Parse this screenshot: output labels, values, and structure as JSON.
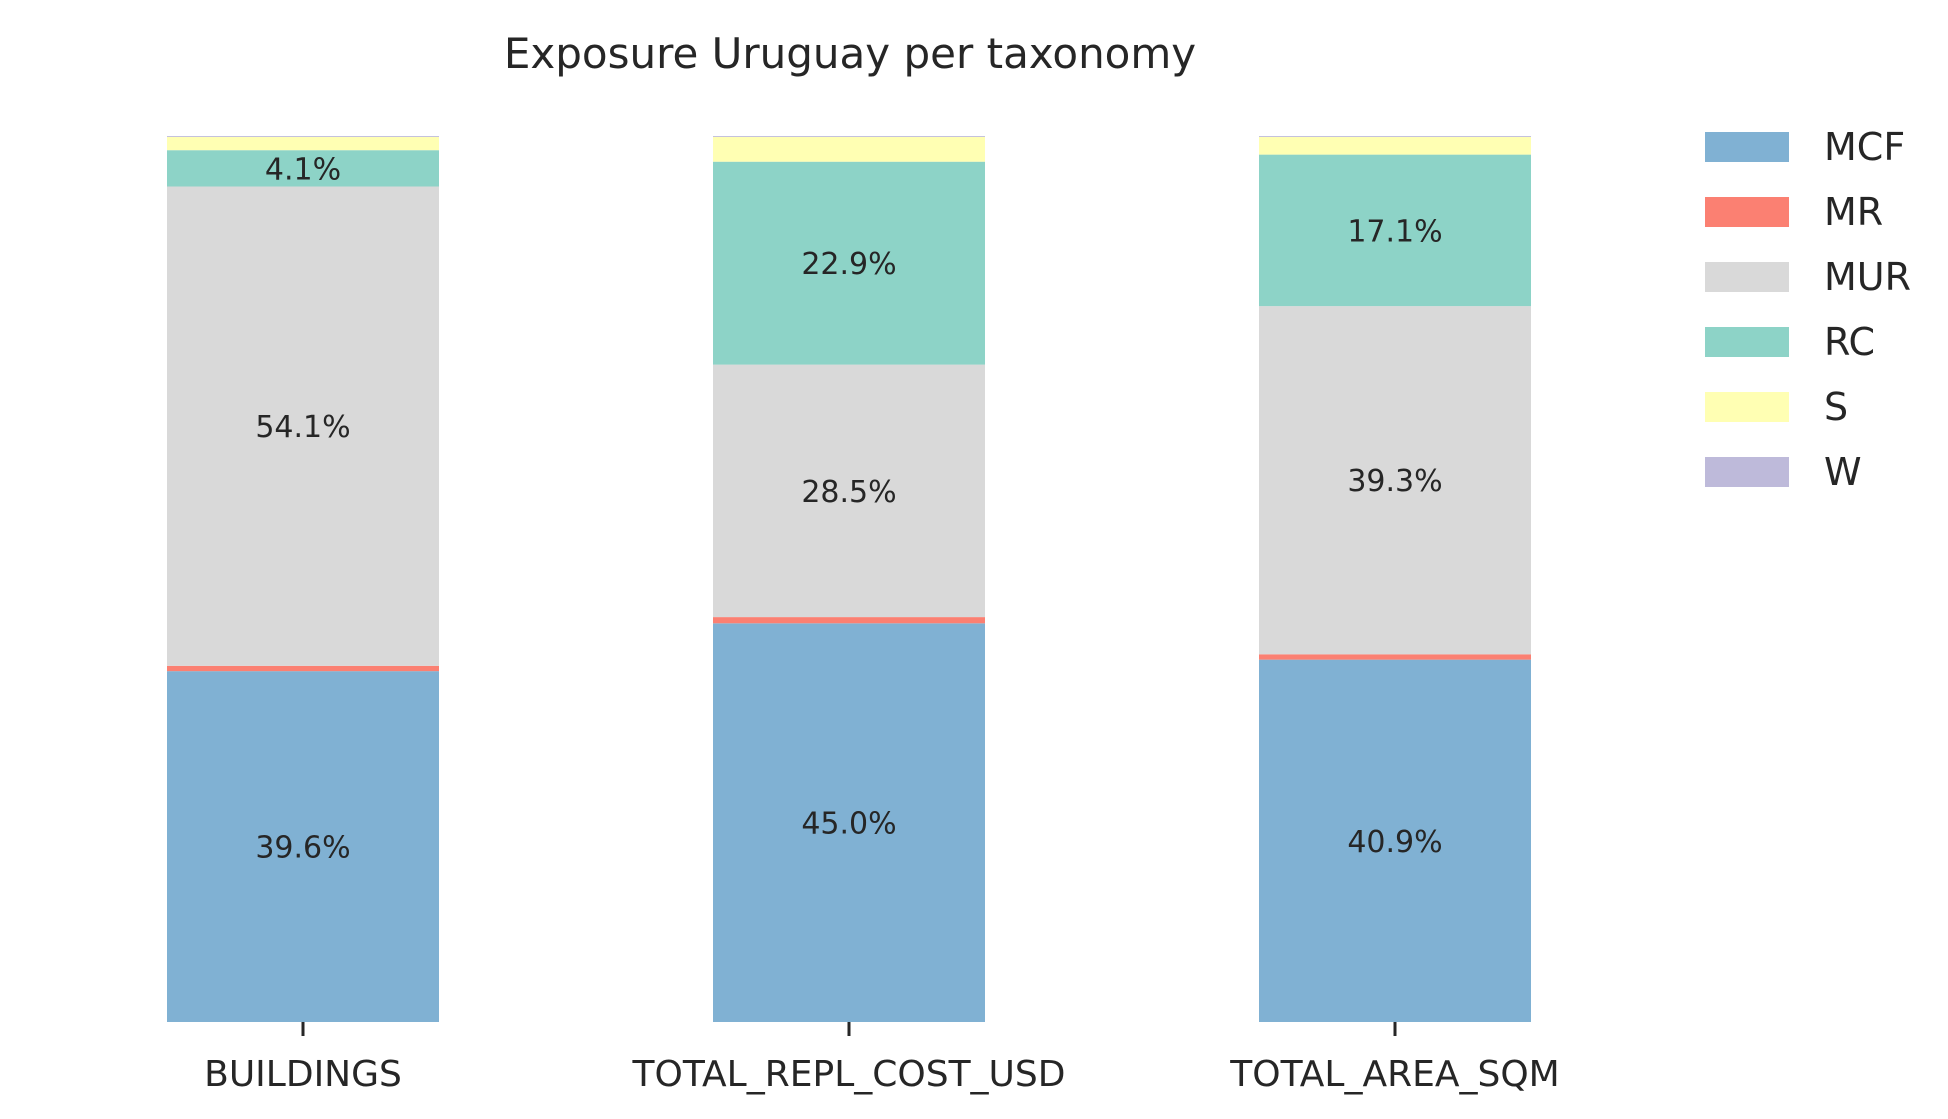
{
  "chart_data": {
    "type": "bar",
    "stacked": true,
    "normalized": true,
    "title": "Exposure Uruguay per taxonomy",
    "xlabel": "",
    "ylabel": "",
    "ylim": [
      0,
      100
    ],
    "grid": false,
    "legend_position": "top-right",
    "categories": [
      "BUILDINGS",
      "TOTAL_REPL_COST_USD",
      "TOTAL_AREA_SQM"
    ],
    "series": [
      {
        "name": "MCF",
        "color": "#80b1d3",
        "values": [
          39.6,
          45.0,
          40.9
        ]
      },
      {
        "name": "MR",
        "color": "#fb8072",
        "values": [
          0.6,
          0.7,
          0.6
        ]
      },
      {
        "name": "MUR",
        "color": "#d9d9d9",
        "values": [
          54.1,
          28.5,
          39.3
        ]
      },
      {
        "name": "RC",
        "color": "#8dd3c7",
        "values": [
          4.1,
          22.9,
          17.1
        ]
      },
      {
        "name": "S",
        "color": "#ffffb3",
        "values": [
          1.5,
          2.8,
          2.0
        ]
      },
      {
        "name": "W",
        "color": "#bebada",
        "values": [
          0.1,
          0.1,
          0.1
        ]
      }
    ],
    "data_labels": [
      [
        "39.6%",
        "",
        "54.1%",
        "4.1%",
        "",
        ""
      ],
      [
        "45.0%",
        "",
        "28.5%",
        "22.9%",
        "",
        ""
      ],
      [
        "40.9%",
        "",
        "39.3%",
        "17.1%",
        "",
        ""
      ]
    ]
  }
}
